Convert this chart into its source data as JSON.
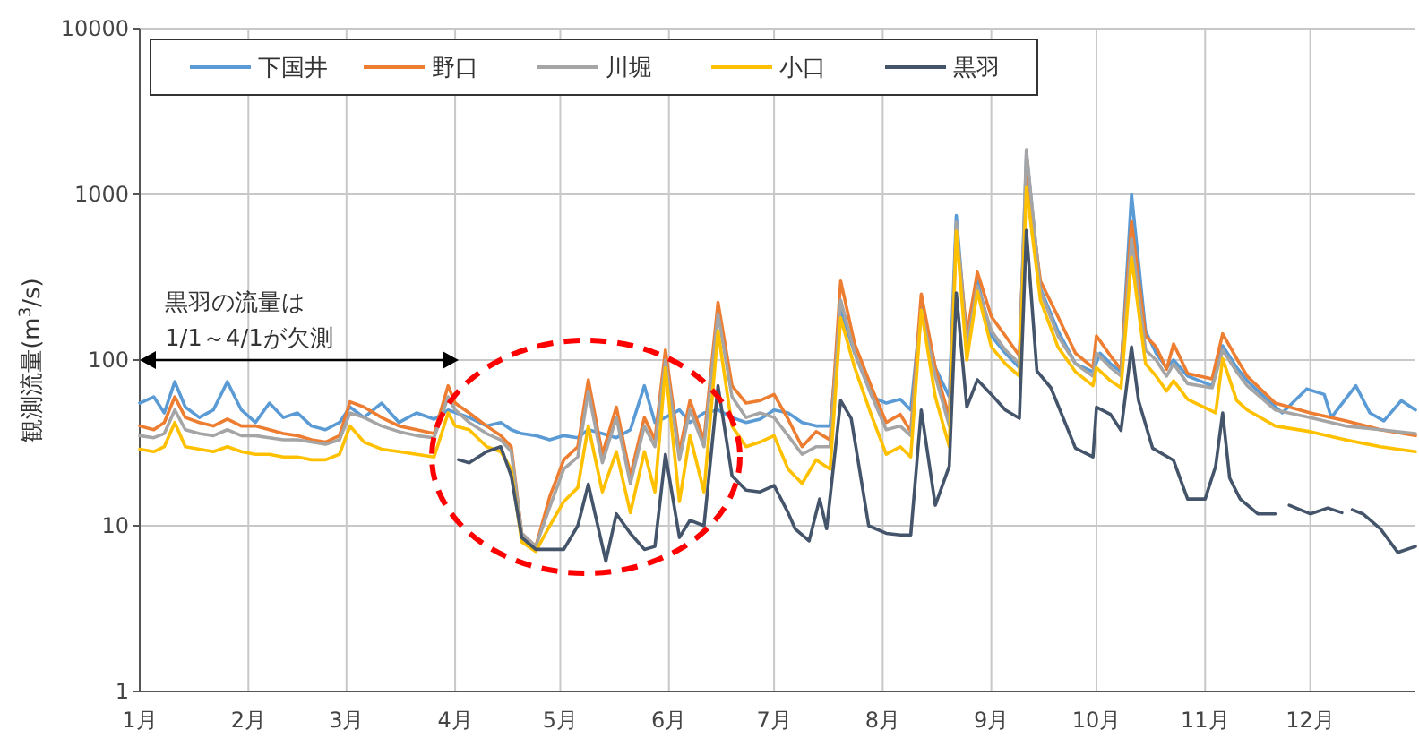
{
  "chart_data": {
    "type": "line",
    "ylabel": "観測流量(m$^{3}$/s)",
    "log": true,
    "grid": true,
    "legend": "top left",
    "line_style": "solid",
    "marker": "none",
    "xlim": [
      "--01-01",
      "--12-31"
    ],
    "ylim": [
      1,
      10000
    ],
    "yticks": [
      1,
      10,
      100,
      1000,
      10000
    ],
    "xticks": [
      {
        "value": "--01-01",
        "label": "1月"
      },
      {
        "value": "--02-01",
        "label": "2月"
      },
      {
        "value": "--03-01",
        "label": "3月"
      },
      {
        "value": "--04-01",
        "label": "4月"
      },
      {
        "value": "--05-01",
        "label": "5月"
      },
      {
        "value": "--06-01",
        "label": "6月"
      },
      {
        "value": "--07-01",
        "label": "7月"
      },
      {
        "value": "--08-01",
        "label": "8月"
      },
      {
        "value": "--09-01",
        "label": "9月"
      },
      {
        "value": "--10-01",
        "label": "10月"
      },
      {
        "value": "--11-01",
        "label": "11月"
      },
      {
        "value": "--12-01",
        "label": "12月"
      }
    ],
    "annotations": [
      "黒羽の流量は\n1/1～4/1が欠測"
    ],
    "series": [
      {
        "name": "下国井",
        "color": "#5b9bd5",
        "x": [
          "--01-01",
          "--01-05",
          "--01-08",
          "--01-11",
          "--01-14",
          "--01-18",
          "--01-22",
          "--01-26",
          "--01-30",
          "--02-03",
          "--02-07",
          "--02-11",
          "--02-15",
          "--02-19",
          "--02-23",
          "--02-27",
          "--03-02",
          "--03-06",
          "--03-11",
          "--03-16",
          "--03-21",
          "--03-26",
          "--03-30",
          "--04-05",
          "--04-10",
          "--04-14",
          "--04-17",
          "--04-20",
          "--04-24",
          "--04-28",
          "--05-02",
          "--05-06",
          "--05-09",
          "--05-13",
          "--05-17",
          "--05-21",
          "--05-25",
          "--05-28",
          "--05-31",
          "--06-04",
          "--06-07",
          "--06-11",
          "--06-15",
          "--06-19",
          "--06-23",
          "--06-27",
          "--07-01",
          "--07-05",
          "--07-09",
          "--07-13",
          "--07-17",
          "--07-20",
          "--07-24",
          "--07-29",
          "--08-02",
          "--08-06",
          "--08-09",
          "--08-12",
          "--08-16",
          "--08-20",
          "--08-22",
          "--08-25",
          "--08-28",
          "--09-01",
          "--09-05",
          "--09-09",
          "--09-11",
          "--09-15",
          "--09-20",
          "--09-25",
          "--09-30",
          "--10-02",
          "--10-05",
          "--10-08",
          "--10-11",
          "--10-15",
          "--10-18",
          "--10-21",
          "--10-23",
          "--10-27",
          "--11-03",
          "--11-06",
          "--11-10",
          "--11-13",
          "--11-19",
          "--11-23",
          "--11-30",
          "--12-05",
          "--12-07",
          "--12-14",
          "--12-18",
          "--12-22",
          "--12-27",
          "--12-31"
        ],
        "values": [
          55,
          60,
          48,
          74,
          52,
          45,
          50,
          74,
          50,
          42,
          55,
          45,
          48,
          40,
          38,
          42,
          52,
          45,
          55,
          42,
          48,
          44,
          50,
          45,
          40,
          42,
          38,
          36,
          35,
          33,
          35,
          34,
          38,
          36,
          34,
          38,
          70,
          42,
          45,
          50,
          42,
          48,
          50,
          45,
          42,
          44,
          50,
          48,
          42,
          40,
          40,
          200,
          110,
          60,
          55,
          58,
          50,
          210,
          90,
          60,
          745,
          130,
          300,
          140,
          110,
          90,
          1750,
          270,
          150,
          95,
          85,
          110,
          95,
          85,
          1000,
          150,
          110,
          90,
          100,
          80,
          70,
          122,
          90,
          75,
          57,
          48,
          67,
          62,
          45,
          70,
          48,
          43,
          57,
          50
        ]
      },
      {
        "name": "野口",
        "color": "#ed7d31",
        "x": [
          "--01-01",
          "--01-05",
          "--01-08",
          "--01-11",
          "--01-14",
          "--01-18",
          "--01-22",
          "--01-26",
          "--01-30",
          "--02-03",
          "--02-07",
          "--02-11",
          "--02-15",
          "--02-19",
          "--02-23",
          "--02-27",
          "--03-02",
          "--03-06",
          "--03-11",
          "--03-16",
          "--03-21",
          "--03-26",
          "--03-30",
          "--04-01",
          "--04-05",
          "--04-10",
          "--04-14",
          "--04-17",
          "--04-20",
          "--04-24",
          "--04-28",
          "--05-02",
          "--05-06",
          "--05-09",
          "--05-13",
          "--05-17",
          "--05-21",
          "--05-25",
          "--05-28",
          "--05-31",
          "--06-04",
          "--06-07",
          "--06-11",
          "--06-15",
          "--06-19",
          "--06-23",
          "--06-27",
          "--07-01",
          "--07-05",
          "--07-09",
          "--07-13",
          "--07-17",
          "--07-20",
          "--07-24",
          "--07-29",
          "--08-02",
          "--08-06",
          "--08-09",
          "--08-12",
          "--08-16",
          "--08-20",
          "--08-22",
          "--08-25",
          "--08-28",
          "--09-01",
          "--09-05",
          "--09-09",
          "--09-11",
          "--09-15",
          "--09-20",
          "--09-25",
          "--09-30",
          "--10-01",
          "--10-05",
          "--10-08",
          "--10-11",
          "--10-15",
          "--10-18",
          "--10-21",
          "--10-23",
          "--10-27",
          "--11-03",
          "--11-06",
          "--11-10",
          "--11-13",
          "--11-21",
          "--12-01",
          "--12-11",
          "--12-21",
          "--12-31"
        ],
        "values": [
          40,
          38,
          42,
          60,
          45,
          42,
          40,
          44,
          40,
          40,
          38,
          36,
          35,
          33,
          32,
          35,
          56,
          52,
          45,
          40,
          38,
          36,
          70,
          55,
          48,
          40,
          35,
          30,
          9,
          7.5,
          15,
          25,
          30,
          76,
          27,
          52,
          20,
          45,
          33,
          115,
          28,
          57,
          33,
          223,
          70,
          55,
          57,
          62,
          44,
          30,
          37,
          33,
          300,
          125,
          67,
          42,
          47,
          37,
          250,
          90,
          45,
          630,
          141,
          340,
          183,
          140,
          106,
          1330,
          300,
          183,
          110,
          90,
          140,
          106,
          88,
          685,
          140,
          120,
          88,
          125,
          83,
          77,
          144,
          102,
          80,
          55,
          48,
          43,
          38,
          35
        ]
      },
      {
        "name": "川堀",
        "color": "#a5a5a5",
        "x": [
          "--01-01",
          "--01-05",
          "--01-08",
          "--01-11",
          "--01-14",
          "--01-18",
          "--01-22",
          "--01-26",
          "--01-30",
          "--02-03",
          "--02-07",
          "--02-11",
          "--02-15",
          "--02-19",
          "--02-23",
          "--02-27",
          "--03-02",
          "--03-06",
          "--03-11",
          "--03-16",
          "--03-21",
          "--03-26",
          "--03-30",
          "--04-01",
          "--04-05",
          "--04-10",
          "--04-14",
          "--04-17",
          "--04-20",
          "--04-24",
          "--04-28",
          "--05-02",
          "--05-06",
          "--05-09",
          "--05-13",
          "--05-17",
          "--05-21",
          "--05-25",
          "--05-28",
          "--05-31",
          "--06-04",
          "--06-07",
          "--06-11",
          "--06-15",
          "--06-19",
          "--06-23",
          "--06-27",
          "--07-01",
          "--07-05",
          "--07-09",
          "--07-13",
          "--07-17",
          "--07-20",
          "--07-24",
          "--07-29",
          "--08-02",
          "--08-06",
          "--08-09",
          "--08-12",
          "--08-16",
          "--08-20",
          "--08-22",
          "--08-25",
          "--08-28",
          "--09-01",
          "--09-05",
          "--09-09",
          "--09-11",
          "--09-15",
          "--09-20",
          "--09-25",
          "--09-30",
          "--10-01",
          "--10-05",
          "--10-08",
          "--10-11",
          "--10-15",
          "--10-18",
          "--10-21",
          "--10-23",
          "--10-27",
          "--11-03",
          "--11-06",
          "--11-10",
          "--11-13",
          "--11-21",
          "--12-01",
          "--12-11",
          "--12-21",
          "--12-31"
        ],
        "values": [
          35,
          34,
          36,
          50,
          38,
          36,
          35,
          38,
          35,
          35,
          34,
          33,
          33,
          32,
          31,
          33,
          48,
          45,
          40,
          37,
          35,
          34,
          60,
          50,
          42,
          36,
          33,
          28,
          9,
          7.5,
          13,
          22,
          26,
          65,
          24,
          45,
          18,
          40,
          30,
          100,
          25,
          50,
          30,
          190,
          60,
          45,
          48,
          45,
          35,
          27,
          30,
          30,
          230,
          110,
          60,
          38,
          40,
          35,
          200,
          80,
          40,
          680,
          120,
          280,
          150,
          115,
          95,
          1860,
          260,
          140,
          95,
          80,
          110,
          90,
          80,
          540,
          115,
          100,
          80,
          95,
          72,
          68,
          115,
          85,
          70,
          50,
          45,
          40,
          38,
          36
        ]
      },
      {
        "name": "小口",
        "color": "#ffc000",
        "x": [
          "--01-01",
          "--01-05",
          "--01-08",
          "--01-11",
          "--01-14",
          "--01-18",
          "--01-22",
          "--01-26",
          "--01-30",
          "--02-03",
          "--02-07",
          "--02-11",
          "--02-15",
          "--02-19",
          "--02-23",
          "--02-27",
          "--03-02",
          "--03-06",
          "--03-11",
          "--03-16",
          "--03-21",
          "--03-26",
          "--03-30",
          "--04-01",
          "--04-05",
          "--04-10",
          "--04-14",
          "--04-17",
          "--04-20",
          "--04-24",
          "--04-28",
          "--05-02",
          "--05-06",
          "--05-09",
          "--05-13",
          "--05-17",
          "--05-21",
          "--05-25",
          "--05-28",
          "--05-31",
          "--06-04",
          "--06-07",
          "--06-11",
          "--06-15",
          "--06-19",
          "--06-23",
          "--06-27",
          "--07-01",
          "--07-05",
          "--07-09",
          "--07-13",
          "--07-17",
          "--07-20",
          "--07-24",
          "--07-29",
          "--08-02",
          "--08-06",
          "--08-09",
          "--08-12",
          "--08-16",
          "--08-20",
          "--08-22",
          "--08-25",
          "--08-28",
          "--09-01",
          "--09-05",
          "--09-09",
          "--09-11",
          "--09-15",
          "--09-20",
          "--09-25",
          "--09-30",
          "--10-01",
          "--10-05",
          "--10-08",
          "--10-11",
          "--10-15",
          "--10-18",
          "--10-21",
          "--10-23",
          "--10-27",
          "--11-04",
          "--11-06",
          "--11-10",
          "--11-13",
          "--11-21",
          "--12-01",
          "--12-11",
          "--12-21",
          "--12-31"
        ],
        "values": [
          29,
          28,
          30,
          42,
          30,
          29,
          28,
          30,
          28,
          27,
          27,
          26,
          26,
          25,
          25,
          27,
          40,
          32,
          29,
          28,
          27,
          26,
          48,
          40,
          38,
          30,
          28,
          22,
          8,
          7,
          10,
          14,
          17,
          40,
          16,
          28,
          12,
          28,
          16,
          90,
          14,
          35,
          16,
          150,
          40,
          30,
          32,
          35,
          22,
          18,
          25,
          22,
          180,
          90,
          45,
          27,
          30,
          26,
          200,
          60,
          30,
          600,
          100,
          260,
          120,
          95,
          80,
          1100,
          230,
          120,
          85,
          70,
          90,
          75,
          68,
          417,
          95,
          80,
          65,
          75,
          58,
          48,
          102,
          57,
          50,
          40,
          37,
          33,
          30,
          28
        ]
      },
      {
        "name": "黒羽",
        "color": "#44546a",
        "x": [
          "--04-02",
          "--04-05",
          "--04-10",
          "--04-14",
          "--04-17",
          "--04-20",
          "--04-24",
          "--04-28",
          "--05-02",
          "--05-06",
          "--05-09",
          "--05-14",
          "--05-17",
          "--05-21",
          "--05-25",
          "--05-28",
          "--05-31",
          "--06-04",
          "--06-07",
          "--06-11",
          "--06-15",
          "--06-19",
          "--06-23",
          "--06-27",
          "--07-01",
          "--07-05",
          "--07-07",
          "--07-11",
          "--07-14",
          "--07-16",
          "--07-20",
          "--07-23",
          "--07-28",
          "--08-02",
          "--08-06",
          "--08-09",
          "--08-12",
          "--08-16",
          "--08-20",
          "--08-22",
          "--08-25",
          "--08-28",
          "--09-01",
          "--09-05",
          "--09-09",
          "--09-11",
          "--09-14",
          "--09-18",
          "--09-25",
          "--09-30",
          "--10-01",
          "--10-05",
          "--10-08",
          "--10-11",
          "--10-13",
          "--10-17",
          "--10-23",
          "--10-27",
          "--11-01",
          "--11-04",
          "--11-06",
          "--11-08",
          "--11-11",
          "--11-16",
          "--11-21",
          "--11-22",
          "--11-25",
          "--12-01",
          "--12-06",
          "--12-10",
          "--12-11",
          "--12-13",
          "--12-16",
          "--12-21",
          "--12-26",
          "--12-31"
        ],
        "values": [
          25,
          24,
          28,
          30,
          20,
          8.5,
          7.2,
          7.2,
          7.2,
          10,
          17.8,
          6.1,
          11.8,
          9,
          7.2,
          7.5,
          27,
          8.5,
          10.8,
          10,
          70,
          20,
          16.4,
          16,
          17.5,
          12,
          9.6,
          8.1,
          14.5,
          9.6,
          57,
          44.5,
          10,
          9,
          8.8,
          8.8,
          50,
          13.3,
          22.9,
          254,
          52,
          76,
          62,
          50,
          44.5,
          606,
          86,
          68,
          29.4,
          26,
          52,
          47,
          37.6,
          120,
          57,
          29.4,
          24.8,
          14.5,
          14.5,
          22.9,
          48,
          19.4,
          14.5,
          11.8,
          11.8,
          null,
          13.3,
          11.8,
          12.8,
          12,
          null,
          12.5,
          11.8,
          9.6,
          6.9,
          7.5
        ]
      }
    ]
  }
}
